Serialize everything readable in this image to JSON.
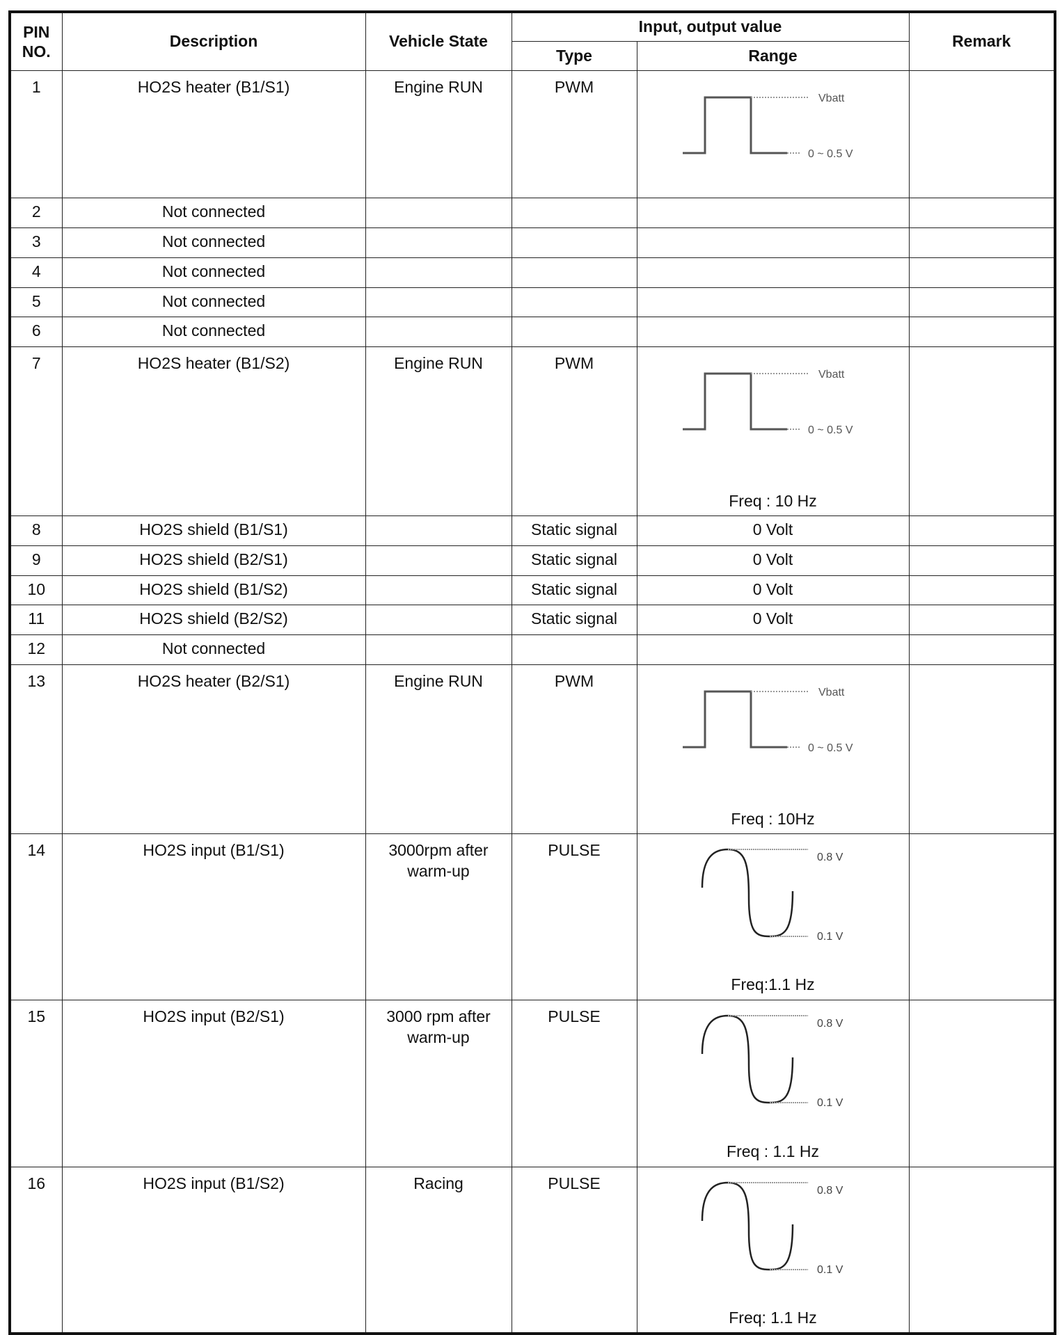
{
  "headers": {
    "pin": "PIN NO.",
    "description": "Description",
    "vehicle_state": "Vehicle State",
    "io": "Input, output value",
    "type": "Type",
    "range": "Range",
    "remark": "Remark"
  },
  "rows": [
    {
      "pin": "1",
      "description": "HO2S heater (B1/S1)",
      "state": "Engine RUN",
      "type": "PWM",
      "range": "",
      "wave": "pwm",
      "hi": "Vbatt",
      "lo": "0 ~ 0.5 V",
      "freq": "",
      "h": 178
    },
    {
      "pin": "2",
      "description": "Not connected",
      "state": "",
      "type": "",
      "range": "",
      "h": 43
    },
    {
      "pin": "3",
      "description": "Not connected",
      "state": "",
      "type": "",
      "range": "",
      "h": 43
    },
    {
      "pin": "4",
      "description": "Not connected",
      "state": "",
      "type": "",
      "range": "",
      "h": 43
    },
    {
      "pin": "5",
      "description": "Not connected",
      "state": "",
      "type": "",
      "range": "",
      "h": 42
    },
    {
      "pin": "6",
      "description": "Not connected",
      "state": "",
      "type": "",
      "range": "",
      "h": 43
    },
    {
      "pin": "7",
      "description": "HO2S heater (B1/S2)",
      "state": "Engine RUN",
      "type": "PWM",
      "range": "",
      "wave": "pwm",
      "hi": "Vbatt",
      "lo": "0 ~ 0.5 V",
      "freq": "Freq : 10 Hz",
      "h": 238
    },
    {
      "pin": "8",
      "description": "HO2S shield (B1/S1)",
      "state": "",
      "type": "Static signal",
      "range": "0 Volt",
      "h": 43
    },
    {
      "pin": "9",
      "description": "HO2S shield (B2/S1)",
      "state": "",
      "type": "Static signal",
      "range": "0 Volt",
      "h": 43
    },
    {
      "pin": "10",
      "description": "HO2S shield (B1/S2)",
      "state": "",
      "type": "Static signal",
      "range": "0 Volt",
      "h": 42
    },
    {
      "pin": "11",
      "description": "HO2S shield (B2/S2)",
      "state": "",
      "type": "Static signal",
      "range": "0 Volt",
      "h": 43
    },
    {
      "pin": "12",
      "description": "Not connected",
      "state": "",
      "type": "",
      "range": "",
      "h": 43
    },
    {
      "pin": "13",
      "description": "HO2S heater (B2/S1)",
      "state": "Engine RUN",
      "type": "PWM",
      "range": "",
      "wave": "pwm",
      "hi": "Vbatt",
      "lo": "0 ~ 0.5 V",
      "freq": "Freq : 10Hz",
      "h": 238
    },
    {
      "pin": "14",
      "description": "HO2S input (B1/S1)",
      "state": "3000rpm after warm-up",
      "type": "PULSE",
      "range": "",
      "wave": "sine",
      "hi": "0.8 V",
      "lo": "0.1 V",
      "freq": "Freq:1.1 Hz",
      "h": 239
    },
    {
      "pin": "15",
      "description": "HO2S input (B2/S1)",
      "state": "3000 rpm after warm-up",
      "type": "PULSE",
      "range": "",
      "wave": "sine",
      "hi": "0.8 V",
      "lo": "0.1 V",
      "freq": "Freq : 1.1 Hz",
      "h": 240
    },
    {
      "pin": "16",
      "description": "HO2S input (B1/S2)",
      "state": "Racing",
      "type": "PULSE",
      "range": "",
      "wave": "sine",
      "hi": "0.8 V",
      "lo": "0.1 V",
      "freq": "Freq: 1.1 Hz",
      "h": 239
    }
  ]
}
